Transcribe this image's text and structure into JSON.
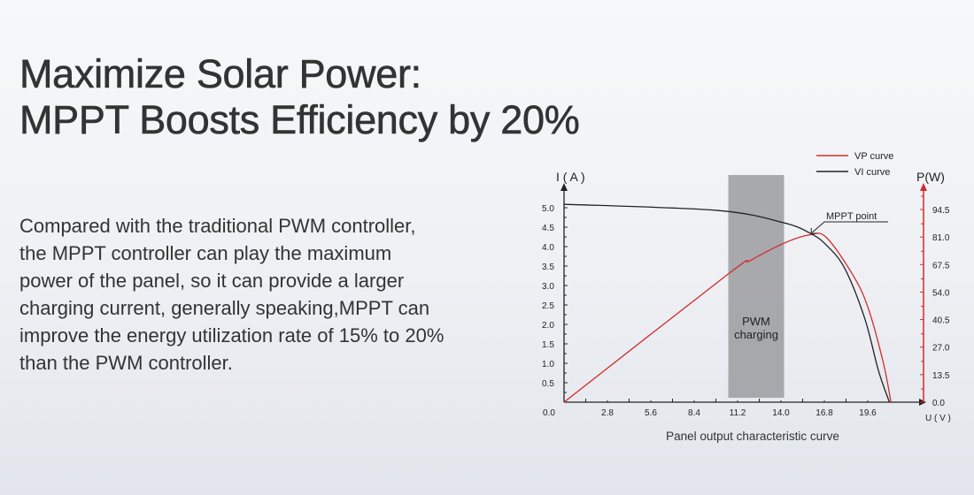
{
  "heading": {
    "line1": "Maximize Solar Power:",
    "line2": "MPPT Boosts Efficiency by 20%"
  },
  "paragraph": {
    "lines": [
      "Compared with the traditional PWM controller,",
      "the MPPT controller can play the maximum",
      "power of the panel, so it can provide a larger",
      "charging current, generally speaking,MPPT can",
      "improve the energy utilization rate of 15% to 20%",
      "than the PWM controller."
    ]
  },
  "chart_data": {
    "type": "line",
    "title": "Panel output characteristic curve",
    "xlabel": "U ( V )",
    "ylabel_left": "I ( A )",
    "ylabel_right": "P(W)",
    "xlim": [
      0,
      24.8
    ],
    "ylim_left": [
      0,
      5.0
    ],
    "ylim_right": [
      0,
      94.5
    ],
    "x_ticks": [
      "0.0",
      "2.8",
      "5.6",
      "8.4",
      "11.2",
      "14.0",
      "16.8",
      "19.6"
    ],
    "y_ticks_left": [
      "0.5",
      "1.0",
      "1.5",
      "2.0",
      "2.5",
      "3.0",
      "3.5",
      "4.0",
      "4.5",
      "5.0"
    ],
    "y_ticks_right": [
      "0.0",
      "13.5",
      "27.0",
      "40.5",
      "54.0",
      "67.5",
      "81.0",
      "94.5"
    ],
    "legend_position": "top-right",
    "colors": {
      "vp": "#d42a2a",
      "vi": "#222222",
      "pwm_band": "#9a9ca0",
      "right_axis": "#d42a2a"
    },
    "series": [
      {
        "name": "VP curve",
        "axis": "right",
        "x": [
          0,
          10.6,
          12.0,
          14.2,
          15.8,
          16.9,
          18.6,
          19.6,
          20.6,
          21.1
        ],
        "y": [
          0,
          62.9,
          69.4,
          78,
          82,
          81,
          62.9,
          46.8,
          19.5,
          0
        ]
      },
      {
        "name": "VI curve",
        "axis": "left",
        "x": [
          0,
          9.9,
          14.2,
          15.9,
          16.9,
          18.1,
          19.4,
          20.3,
          21.0
        ],
        "y": [
          5.09,
          4.93,
          4.61,
          4.34,
          4.05,
          3.45,
          2.16,
          0.8,
          0
        ]
      }
    ],
    "band": {
      "label_line1": "PWM",
      "label_line2": "charging",
      "x_range": [
        10.6,
        14.2
      ]
    },
    "annotation": {
      "text": "MPPT point",
      "x": 15.9,
      "y_left": 4.34
    }
  }
}
